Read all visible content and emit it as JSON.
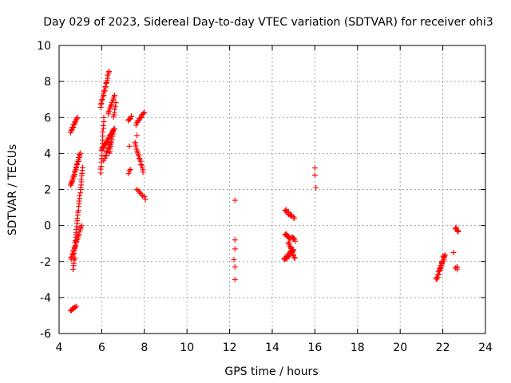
{
  "chart_data": {
    "type": "scatter",
    "title": "Day 029 of 2023, Sidereal Day-to-day VTEC variation (SDTVAR) for receiver ohi3",
    "xlabel": "GPS time / hours",
    "ylabel": "SDTVAR / TECUs",
    "xlim": [
      4,
      24
    ],
    "ylim": [
      -6,
      10
    ],
    "xticks": [
      4,
      6,
      8,
      10,
      12,
      14,
      16,
      18,
      20,
      22,
      24
    ],
    "yticks": [
      -6,
      -4,
      -2,
      0,
      2,
      4,
      6,
      8,
      10
    ],
    "grid": true,
    "marker": "+",
    "color": "#ff0000",
    "series": [
      {
        "name": "SDTVAR",
        "segments": [
          {
            "x0": 4.55,
            "y0": 2.2,
            "x1": 5.0,
            "y1": 4.0,
            "n": 28
          },
          {
            "x0": 4.55,
            "y0": 5.2,
            "x1": 4.85,
            "y1": 6.0,
            "n": 14
          },
          {
            "x0": 4.55,
            "y0": -1.9,
            "x1": 5.05,
            "y1": 0.0,
            "n": 22
          },
          {
            "x0": 4.7,
            "y0": -1.6,
            "x1": 5.1,
            "y1": 3.2,
            "n": 32
          },
          {
            "x0": 4.65,
            "y0": -2.4,
            "x1": 4.75,
            "y1": -1.8,
            "n": 5
          },
          {
            "x0": 4.55,
            "y0": -4.7,
            "x1": 4.8,
            "y1": -4.5,
            "n": 9
          },
          {
            "x0": 5.95,
            "y0": 6.6,
            "x1": 6.35,
            "y1": 8.6,
            "n": 20
          },
          {
            "x0": 5.95,
            "y0": 2.9,
            "x1": 6.1,
            "y1": 6.0,
            "n": 16
          },
          {
            "x0": 6.0,
            "y0": 4.2,
            "x1": 6.6,
            "y1": 5.4,
            "n": 28
          },
          {
            "x0": 6.1,
            "y0": 3.6,
            "x1": 6.4,
            "y1": 4.6,
            "n": 10
          },
          {
            "x0": 6.35,
            "y0": 4.0,
            "x1": 6.55,
            "y1": 5.2,
            "n": 10
          },
          {
            "x0": 6.3,
            "y0": 6.2,
            "x1": 6.6,
            "y1": 7.2,
            "n": 12
          },
          {
            "x0": 6.55,
            "y0": 6.0,
            "x1": 6.65,
            "y1": 6.8,
            "n": 6
          },
          {
            "x0": 7.25,
            "y0": 5.8,
            "x1": 7.4,
            "y1": 6.1,
            "n": 6
          },
          {
            "x0": 7.25,
            "y0": 2.9,
            "x1": 7.35,
            "y1": 3.1,
            "n": 3
          },
          {
            "x0": 7.55,
            "y0": 4.6,
            "x1": 7.95,
            "y1": 3.0,
            "n": 16
          },
          {
            "x0": 7.6,
            "y0": 5.6,
            "x1": 8.0,
            "y1": 6.3,
            "n": 12
          },
          {
            "x0": 7.65,
            "y0": 2.0,
            "x1": 8.05,
            "y1": 1.5,
            "n": 8
          }
        ],
        "points": [
          [
            7.3,
            4.4
          ],
          [
            7.65,
            5.0
          ],
          [
            12.25,
            1.4
          ],
          [
            12.25,
            -0.8
          ],
          [
            12.25,
            -1.3
          ],
          [
            12.2,
            -1.9
          ],
          [
            12.25,
            -2.3
          ],
          [
            12.25,
            -3.0
          ],
          [
            16.0,
            3.2
          ],
          [
            16.0,
            2.8
          ],
          [
            16.05,
            2.1
          ],
          [
            22.5,
            -1.5
          ],
          [
            22.7,
            -0.3
          ]
        ],
        "clusters": [
          {
            "x0": 14.6,
            "y0": 0.9,
            "x1": 15.0,
            "y1": 0.4,
            "n": 14
          },
          {
            "x0": 14.6,
            "y0": -0.5,
            "x1": 15.05,
            "y1": -0.8,
            "n": 18
          },
          {
            "x0": 14.55,
            "y0": -1.9,
            "x1": 15.0,
            "y1": -1.3,
            "n": 18
          },
          {
            "x0": 14.75,
            "y0": -0.9,
            "x1": 15.05,
            "y1": -1.8,
            "n": 14
          },
          {
            "x0": 21.7,
            "y0": -3.0,
            "x1": 22.1,
            "y1": -1.6,
            "n": 26
          },
          {
            "x0": 22.6,
            "y0": -0.1,
            "x1": 22.75,
            "y1": -0.4,
            "n": 6
          },
          {
            "x0": 22.6,
            "y0": -2.3,
            "x1": 22.7,
            "y1": -2.4,
            "n": 4
          }
        ]
      }
    ]
  }
}
